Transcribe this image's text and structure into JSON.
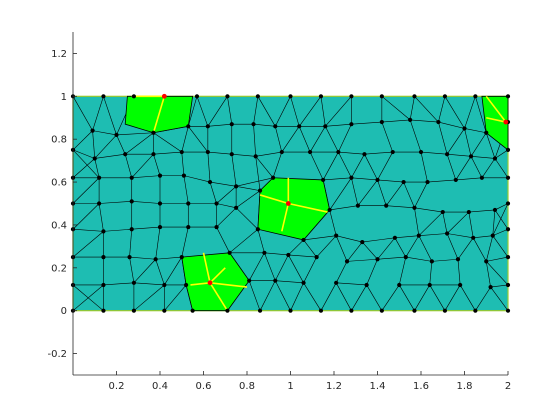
{
  "chart_data": {
    "type": "mesh",
    "title": "",
    "xlabel": "",
    "ylabel": "",
    "xlim": [
      0,
      2
    ],
    "ylim": [
      -0.3,
      1.3
    ],
    "xticks": [
      "0.2",
      "0.4",
      "0.6",
      "0.8",
      "1",
      "1.2",
      "1.4",
      "1.6",
      "1.8",
      "2"
    ],
    "yticks": [
      "-0.2",
      "0",
      "0.2",
      "0.4",
      "0.6",
      "0.8",
      "1",
      "1.2"
    ],
    "xtick_values": [
      0.2,
      0.4,
      0.6,
      0.8,
      1.0,
      1.2,
      1.4,
      1.6,
      1.8,
      2.0
    ],
    "ytick_values": [
      -0.2,
      0,
      0.2,
      0.4,
      0.6,
      0.8,
      1.0,
      1.2
    ],
    "domain_rect": [
      0,
      0,
      2,
      1
    ],
    "grid": false,
    "colors": {
      "mesh_fill": "#1ebdb2",
      "highlight_fill": "#00ff00",
      "highlight_edges": "#ffff00",
      "mesh_edges": "#000000",
      "node": "#000000",
      "center_node": "#ff0000",
      "axis": "#262626"
    },
    "highlight_patches": [
      {
        "center": [
          0.42,
          1.0
        ],
        "polygon": [
          [
            0.25,
            1.0
          ],
          [
            0.55,
            1.0
          ],
          [
            0.53,
            0.86
          ],
          [
            0.37,
            0.83
          ],
          [
            0.24,
            0.87
          ]
        ],
        "spokes": [
          [
            0.37,
            0.83
          ],
          [
            0.27,
            1.0
          ]
        ]
      },
      {
        "center": [
          1.99,
          0.88
        ],
        "polygon": [
          [
            1.88,
            1.0
          ],
          [
            2.0,
            1.0
          ],
          [
            2.0,
            0.75
          ],
          [
            1.9,
            0.83
          ]
        ],
        "spokes": [
          [
            1.9,
            1.0
          ],
          [
            1.9,
            0.9
          ]
        ]
      },
      {
        "center": [
          0.99,
          0.5
        ],
        "polygon": [
          [
            0.86,
            0.56
          ],
          [
            0.92,
            0.62
          ],
          [
            1.15,
            0.61
          ],
          [
            1.18,
            0.47
          ],
          [
            1.06,
            0.33
          ],
          [
            0.85,
            0.38
          ]
        ],
        "spokes": [
          [
            0.99,
            0.62
          ],
          [
            0.86,
            0.54
          ],
          [
            0.96,
            0.37
          ],
          [
            1.17,
            0.46
          ]
        ]
      },
      {
        "center": [
          0.63,
          0.13
        ],
        "polygon": [
          [
            0.5,
            0.25
          ],
          [
            0.72,
            0.27
          ],
          [
            0.81,
            0.14
          ],
          [
            0.71,
            0.0
          ],
          [
            0.55,
            0.0
          ],
          [
            0.52,
            0.12
          ]
        ],
        "spokes": [
          [
            0.6,
            0.27
          ],
          [
            0.54,
            0.12
          ],
          [
            0.7,
            0.2
          ],
          [
            0.8,
            0.11
          ],
          [
            0.71,
            0.0
          ]
        ]
      }
    ],
    "mesh": {
      "nodes": [
        [
          0.0,
          0.0
        ],
        [
          0.14,
          0.0
        ],
        [
          0.28,
          0.0
        ],
        [
          0.42,
          0.0
        ],
        [
          0.55,
          0.0
        ],
        [
          0.71,
          0.0
        ],
        [
          0.86,
          0.0
        ],
        [
          1.0,
          0.0
        ],
        [
          1.14,
          0.0
        ],
        [
          1.28,
          0.0
        ],
        [
          1.42,
          0.0
        ],
        [
          1.57,
          0.0
        ],
        [
          1.71,
          0.0
        ],
        [
          1.85,
          0.0
        ],
        [
          2.0,
          0.0
        ],
        [
          0.0,
          0.12
        ],
        [
          0.14,
          0.12
        ],
        [
          0.28,
          0.13
        ],
        [
          0.42,
          0.12
        ],
        [
          0.52,
          0.12
        ],
        [
          0.63,
          0.13
        ],
        [
          0.81,
          0.14
        ],
        [
          0.93,
          0.14
        ],
        [
          1.06,
          0.13
        ],
        [
          1.21,
          0.13
        ],
        [
          1.35,
          0.12
        ],
        [
          1.5,
          0.12
        ],
        [
          1.64,
          0.12
        ],
        [
          1.78,
          0.12
        ],
        [
          1.92,
          0.11
        ],
        [
          2.0,
          0.12
        ],
        [
          0.0,
          0.25
        ],
        [
          0.14,
          0.25
        ],
        [
          0.26,
          0.25
        ],
        [
          0.38,
          0.24
        ],
        [
          0.5,
          0.25
        ],
        [
          0.72,
          0.27
        ],
        [
          0.88,
          0.27
        ],
        [
          0.99,
          0.26
        ],
        [
          1.12,
          0.25
        ],
        [
          1.26,
          0.23
        ],
        [
          1.4,
          0.24
        ],
        [
          1.53,
          0.25
        ],
        [
          1.65,
          0.23
        ],
        [
          1.77,
          0.24
        ],
        [
          1.9,
          0.23
        ],
        [
          2.0,
          0.25
        ],
        [
          0.0,
          0.38
        ],
        [
          0.14,
          0.37
        ],
        [
          0.27,
          0.38
        ],
        [
          0.4,
          0.39
        ],
        [
          0.53,
          0.39
        ],
        [
          0.66,
          0.39
        ],
        [
          0.85,
          0.38
        ],
        [
          1.06,
          0.33
        ],
        [
          1.21,
          0.35
        ],
        [
          1.33,
          0.32
        ],
        [
          1.48,
          0.34
        ],
        [
          1.59,
          0.35
        ],
        [
          1.72,
          0.36
        ],
        [
          1.84,
          0.34
        ],
        [
          1.93,
          0.35
        ],
        [
          2.0,
          0.38
        ],
        [
          0.0,
          0.5
        ],
        [
          0.12,
          0.5
        ],
        [
          0.27,
          0.51
        ],
        [
          0.4,
          0.5
        ],
        [
          0.53,
          0.5
        ],
        [
          0.66,
          0.5
        ],
        [
          0.75,
          0.48
        ],
        [
          1.18,
          0.47
        ],
        [
          1.31,
          0.49
        ],
        [
          1.44,
          0.49
        ],
        [
          1.57,
          0.48
        ],
        [
          1.7,
          0.46
        ],
        [
          1.82,
          0.46
        ],
        [
          1.94,
          0.47
        ],
        [
          2.0,
          0.5
        ],
        [
          0.0,
          0.62
        ],
        [
          0.12,
          0.62
        ],
        [
          0.27,
          0.62
        ],
        [
          0.4,
          0.63
        ],
        [
          0.51,
          0.63
        ],
        [
          0.63,
          0.6
        ],
        [
          0.75,
          0.58
        ],
        [
          0.86,
          0.56
        ],
        [
          0.92,
          0.62
        ],
        [
          1.15,
          0.61
        ],
        [
          1.28,
          0.62
        ],
        [
          1.4,
          0.61
        ],
        [
          1.52,
          0.6
        ],
        [
          1.63,
          0.6
        ],
        [
          1.76,
          0.61
        ],
        [
          1.88,
          0.62
        ],
        [
          2.0,
          0.62
        ],
        [
          0.0,
          0.75
        ],
        [
          0.1,
          0.71
        ],
        [
          0.24,
          0.73
        ],
        [
          0.37,
          0.73
        ],
        [
          0.5,
          0.74
        ],
        [
          0.62,
          0.74
        ],
        [
          0.73,
          0.73
        ],
        [
          0.84,
          0.72
        ],
        [
          0.96,
          0.74
        ],
        [
          1.09,
          0.74
        ],
        [
          1.22,
          0.74
        ],
        [
          1.34,
          0.73
        ],
        [
          1.47,
          0.74
        ],
        [
          1.6,
          0.74
        ],
        [
          1.72,
          0.73
        ],
        [
          1.83,
          0.72
        ],
        [
          1.94,
          0.71
        ],
        [
          0.09,
          0.84
        ],
        [
          0.2,
          0.82
        ],
        [
          0.37,
          0.83
        ],
        [
          0.53,
          0.86
        ],
        [
          0.62,
          0.86
        ],
        [
          0.73,
          0.87
        ],
        [
          0.83,
          0.87
        ],
        [
          0.93,
          0.86
        ],
        [
          1.04,
          0.86
        ],
        [
          1.16,
          0.86
        ],
        [
          1.28,
          0.87
        ],
        [
          1.42,
          0.88
        ],
        [
          1.55,
          0.89
        ],
        [
          1.68,
          0.88
        ],
        [
          1.8,
          0.85
        ],
        [
          1.9,
          0.83
        ],
        [
          2.0,
          0.75
        ],
        [
          0.0,
          1.0
        ],
        [
          0.14,
          1.0
        ],
        [
          0.28,
          1.0
        ],
        [
          0.42,
          1.0
        ],
        [
          0.57,
          1.0
        ],
        [
          0.71,
          1.0
        ],
        [
          0.85,
          1.0
        ],
        [
          1.0,
          1.0
        ],
        [
          1.14,
          1.0
        ],
        [
          1.28,
          1.0
        ],
        [
          1.42,
          1.0
        ],
        [
          1.57,
          1.0
        ],
        [
          1.71,
          1.0
        ],
        [
          1.85,
          1.0
        ],
        [
          2.0,
          1.0
        ],
        [
          2.0,
          0.88
        ]
      ]
    }
  }
}
